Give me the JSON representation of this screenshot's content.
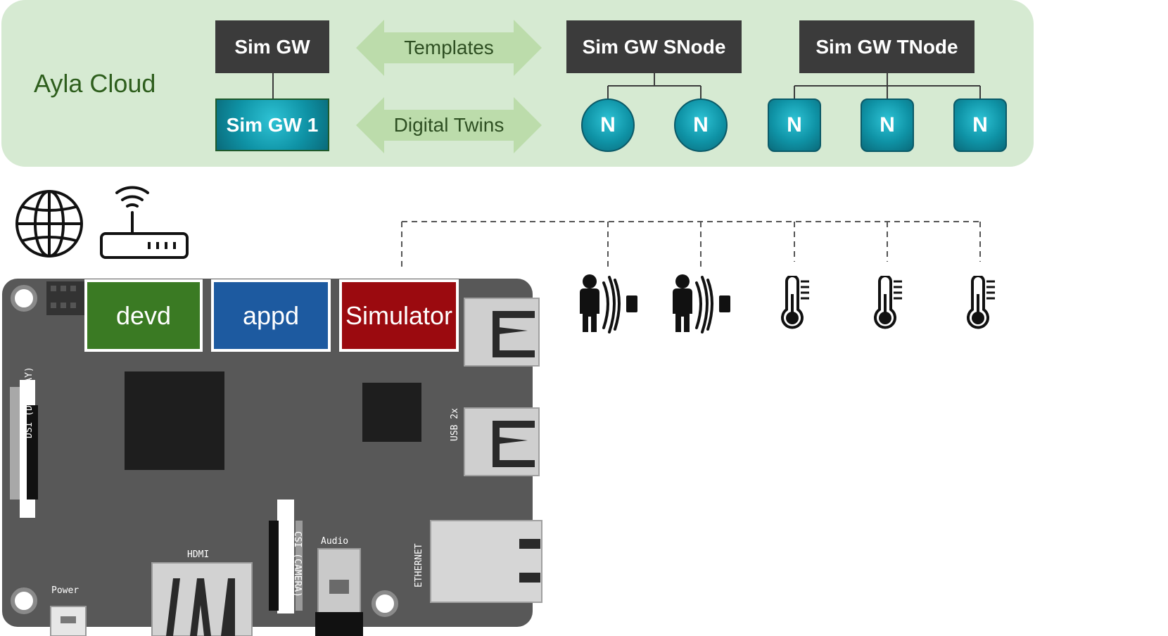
{
  "cloud": {
    "label": "Ayla Cloud",
    "sim_gw": "Sim GW",
    "sim_gw_1": "Sim GW 1",
    "templates": "Templates",
    "digital_twins": "Digital Twins",
    "sim_gw_snode": "Sim GW SNode",
    "sim_gw_tnode": "Sim GW TNode",
    "nodes": [
      "N",
      "N",
      "N",
      "N",
      "N"
    ]
  },
  "board": {
    "services": {
      "devd": "devd",
      "appd": "appd",
      "simulator": "Simulator"
    },
    "labels": {
      "dsi": "DSI (DISPLAY)",
      "usb": "USB 2x",
      "hdmi": "HDMI",
      "csi": "CSI (CAMERA)",
      "audio": "Audio",
      "ethernet": "ETHERNET",
      "power": "Power"
    }
  },
  "colors": {
    "cloud_bg": "#d6ead2",
    "dark_box": "#3b3b3b",
    "teal": "#0f93a6",
    "devd": "#3a7a23",
    "appd": "#1d5aa0",
    "simulator": "#9b0a0f",
    "board": "#585858"
  },
  "icons": {
    "network": [
      "globe-icon",
      "router-icon"
    ],
    "devices": [
      "motion-sensor-icon",
      "motion-sensor-icon",
      "thermometer-icon",
      "thermometer-icon",
      "thermometer-icon"
    ]
  }
}
